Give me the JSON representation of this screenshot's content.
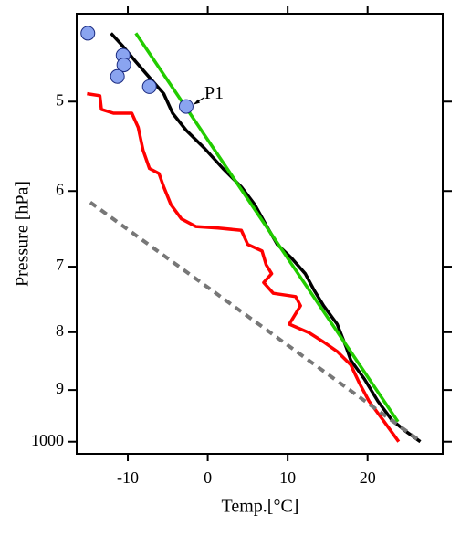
{
  "chart_data": {
    "type": "line",
    "xlabel": "Temp.[°C]",
    "ylabel": "Pressure [hPa]",
    "xlim": [
      -16.4,
      29.4
    ],
    "xticks": [
      -10,
      0,
      10,
      20
    ],
    "ylim": [
      1025,
      418
    ],
    "ylog": true,
    "yticks": [
      {
        "value": 500,
        "label": "5"
      },
      {
        "value": 600,
        "label": "6"
      },
      {
        "value": 700,
        "label": "7"
      },
      {
        "value": 800,
        "label": "8"
      },
      {
        "value": 900,
        "label": "9"
      },
      1000
    ],
    "annotation": "P1",
    "series": [
      {
        "color": "#000000",
        "style": "solid",
        "x": [
          -12.1,
          -10.7,
          -9.0,
          -7.3,
          -5.5,
          -4.4,
          -2.7,
          -0.4,
          1.9,
          4.2,
          5.9,
          7.4,
          8.7,
          10.5,
          12.2,
          13.3,
          14.5,
          16.2,
          17.3,
          17.9,
          19.6,
          21.3,
          23.0,
          24.7,
          26.6
        ],
        "values": [
          435,
          446,
          461,
          476,
          492,
          512,
          530,
          550,
          573,
          595,
          617,
          645,
          669,
          688,
          710,
          734,
          758,
          787,
          824,
          847,
          880,
          921,
          956,
          978,
          1000
        ]
      },
      {
        "color": "#22cc00",
        "style": "solid",
        "x": [
          -9.0,
          23.8
        ],
        "values": [
          435,
          960
        ]
      },
      {
        "color": "#ff0000",
        "style": "solid",
        "x": [
          -15.1,
          -13.5,
          -13.3,
          -11.8,
          -9.5,
          -8.7,
          -8.1,
          -7.3,
          -6.1,
          -5.5,
          -4.6,
          -3.3,
          -1.5,
          1.3,
          4.2,
          5.0,
          6.8,
          7.3,
          8.0,
          7.0,
          8.2,
          11.0,
          11.6,
          10.2,
          12.7,
          14.5,
          16.2,
          17.9,
          19.0,
          20.2,
          21.9,
          23.9
        ],
        "values": [
          492,
          494,
          508,
          512,
          512,
          527,
          552,
          573,
          579,
          595,
          617,
          635,
          645,
          647,
          650,
          669,
          678,
          697,
          710,
          723,
          739,
          744,
          758,
          787,
          801,
          816,
          832,
          855,
          888,
          921,
          956,
          1000
        ]
      },
      {
        "color": "#777777",
        "style": "dashed",
        "x": [
          -14.7,
          26.7
        ],
        "values": [
          614,
          1000
        ]
      },
      {
        "color": "#8aa4f0",
        "style": "marker",
        "x": [
          -15.0,
          -10.6,
          -10.5,
          -11.3,
          -7.3,
          -2.7
        ],
        "values": [
          435,
          455,
          464,
          475,
          485,
          505
        ]
      }
    ]
  }
}
